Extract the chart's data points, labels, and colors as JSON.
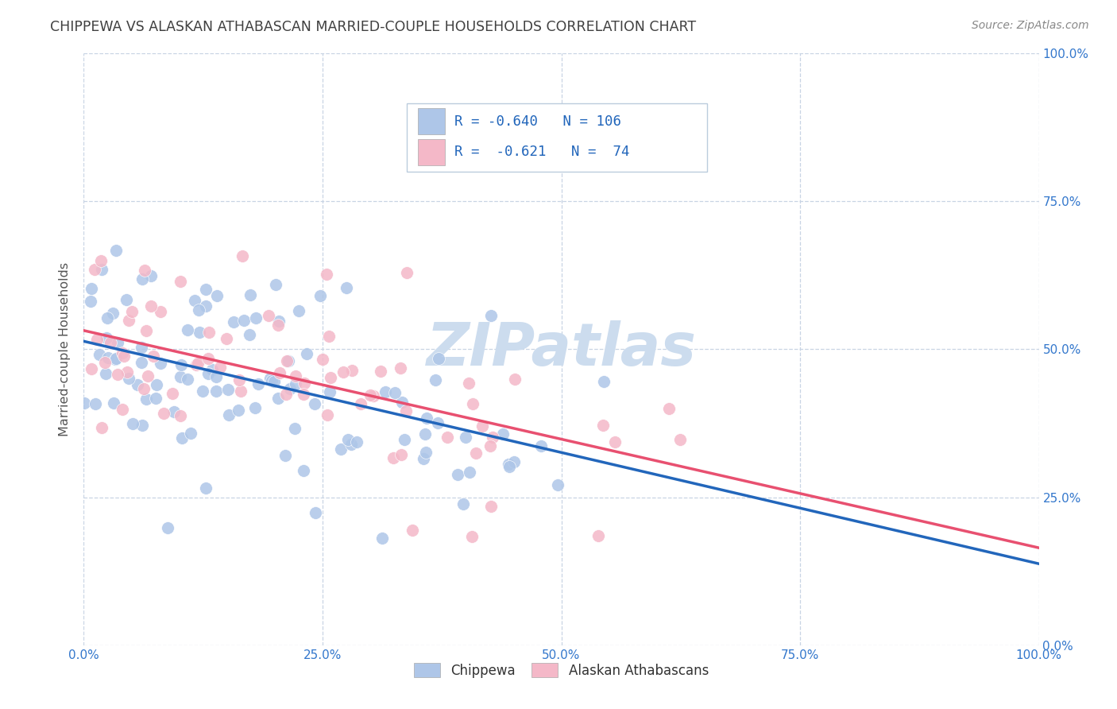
{
  "title": "CHIPPEWA VS ALASKAN ATHABASCAN MARRIED-COUPLE HOUSEHOLDS CORRELATION CHART",
  "source": "Source: ZipAtlas.com",
  "ylabel": "Married-couple Households",
  "xlabel": "",
  "xlim": [
    0.0,
    1.0
  ],
  "ylim": [
    0.0,
    1.0
  ],
  "xticks": [
    0.0,
    0.25,
    0.5,
    0.75,
    1.0
  ],
  "yticks": [
    0.0,
    0.25,
    0.5,
    0.75,
    1.0
  ],
  "xticklabels": [
    "0.0%",
    "25.0%",
    "50.0%",
    "75.0%",
    "100.0%"
  ],
  "right_yticklabels": [
    "0.0%",
    "25.0%",
    "50.0%",
    "75.0%",
    "100.0%"
  ],
  "chippewa_color": "#aec6e8",
  "athabascan_color": "#f4b8c8",
  "chippewa_line_color": "#2266bb",
  "athabascan_line_color": "#e85070",
  "R_chippewa": -0.64,
  "N_chippewa": 106,
  "R_athabascan": -0.621,
  "N_athabascan": 74,
  "watermark": "ZIPatlas",
  "watermark_color": "#ccdcee",
  "background_color": "#ffffff",
  "grid_color": "#c8d4e4",
  "title_color": "#404040",
  "legend_text_color": "#2266bb",
  "tick_color": "#3377cc",
  "legend_chip_line1": "R = -0.640   N = 106",
  "legend_atha_line2": "R =  -0.621   N =  74"
}
